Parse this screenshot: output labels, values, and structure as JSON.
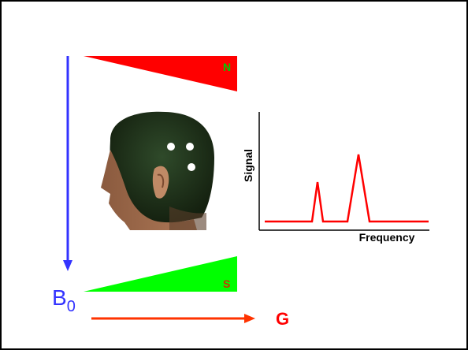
{
  "labels": {
    "north_pole": "N",
    "south_pole": "S",
    "field_symbol": "B",
    "field_subscript": "0",
    "gradient": "G"
  },
  "graph": {
    "y_axis_label": "Signal",
    "x_axis_label": "Frequency"
  },
  "colors": {
    "north_wedge": "#ff0000",
    "north_label": "#00cc00",
    "south_wedge": "#00ff00",
    "south_label": "#cc3300",
    "field_arrow": "#3333ff",
    "field_label": "#3333ff",
    "gradient_arrow": "#ff3300",
    "gradient_label": "#ff0000",
    "spectrum_line": "#ff0000",
    "frame": "#000000"
  }
}
